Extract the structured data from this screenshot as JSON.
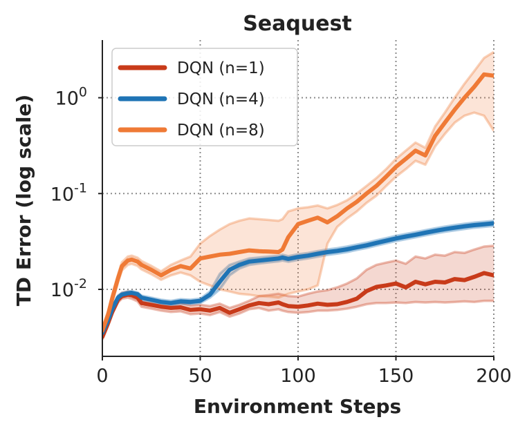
{
  "chart_data": {
    "type": "line",
    "title": "Seaquest",
    "xlabel": "Environment Steps",
    "ylabel": "TD Error (log scale)",
    "y_scale": "log",
    "xlim": [
      0,
      200
    ],
    "ylim": [
      0.002,
      4.0
    ],
    "grid": true,
    "legend_position": "top-left",
    "x_ticks": [
      {
        "value": 0,
        "label": "0"
      },
      {
        "value": 50,
        "label": "50"
      },
      {
        "value": 100,
        "label": "100"
      },
      {
        "value": 150,
        "label": "150"
      },
      {
        "value": 200,
        "label": "200"
      }
    ],
    "y_ticks": [
      {
        "value": 1,
        "base": "10",
        "exp": "0"
      },
      {
        "value": 0.1,
        "base": "10",
        "exp": "-1"
      },
      {
        "value": 0.01,
        "base": "10",
        "exp": "-2"
      }
    ],
    "x": [
      0,
      3,
      5,
      8,
      10,
      13,
      15,
      18,
      20,
      25,
      30,
      35,
      40,
      45,
      50,
      55,
      60,
      65,
      70,
      75,
      80,
      85,
      90,
      92,
      95,
      100,
      105,
      110,
      115,
      120,
      125,
      130,
      135,
      140,
      145,
      150,
      155,
      160,
      165,
      170,
      175,
      180,
      185,
      190,
      195,
      200
    ],
    "series": [
      {
        "name": "DQN (n=1)",
        "color": "#c83b1a",
        "values": [
          0.0032,
          0.0045,
          0.0058,
          0.0078,
          0.0085,
          0.0088,
          0.0087,
          0.0082,
          0.0072,
          0.0069,
          0.0066,
          0.0064,
          0.0065,
          0.0061,
          0.0062,
          0.006,
          0.0064,
          0.0057,
          0.0062,
          0.0068,
          0.0072,
          0.007,
          0.0073,
          0.007,
          0.0067,
          0.0066,
          0.0068,
          0.0071,
          0.0069,
          0.007,
          0.0074,
          0.008,
          0.0096,
          0.0106,
          0.011,
          0.0115,
          0.0105,
          0.012,
          0.0113,
          0.012,
          0.0118,
          0.0128,
          0.0125,
          0.0135,
          0.0148,
          0.014
        ],
        "lower": [
          0.003,
          0.0042,
          0.0055,
          0.0073,
          0.008,
          0.0082,
          0.008,
          0.0075,
          0.0066,
          0.0063,
          0.006,
          0.0058,
          0.0059,
          0.0055,
          0.0056,
          0.0054,
          0.0058,
          0.0052,
          0.0056,
          0.0062,
          0.0064,
          0.006,
          0.0062,
          0.006,
          0.0058,
          0.0057,
          0.0058,
          0.006,
          0.006,
          0.0061,
          0.0063,
          0.0066,
          0.007,
          0.0072,
          0.0072,
          0.0073,
          0.0072,
          0.0074,
          0.0073,
          0.0074,
          0.0073,
          0.0074,
          0.0075,
          0.0074,
          0.0076,
          0.0076
        ],
        "upper": [
          0.0035,
          0.0049,
          0.0062,
          0.0085,
          0.0092,
          0.0095,
          0.0094,
          0.009,
          0.008,
          0.0076,
          0.0073,
          0.0071,
          0.0072,
          0.0068,
          0.0069,
          0.0067,
          0.0071,
          0.0064,
          0.0069,
          0.0076,
          0.0085,
          0.0087,
          0.009,
          0.0088,
          0.0085,
          0.0084,
          0.009,
          0.0095,
          0.0098,
          0.0105,
          0.0115,
          0.013,
          0.016,
          0.018,
          0.019,
          0.02,
          0.0185,
          0.022,
          0.021,
          0.023,
          0.0225,
          0.0245,
          0.024,
          0.026,
          0.028,
          0.0285
        ]
      },
      {
        "name": "DQN (n=4)",
        "color": "#1f74b5",
        "values": [
          0.0035,
          0.0048,
          0.0062,
          0.0082,
          0.0088,
          0.0091,
          0.0092,
          0.0089,
          0.0082,
          0.0078,
          0.0074,
          0.0072,
          0.0075,
          0.0074,
          0.0076,
          0.0088,
          0.012,
          0.016,
          0.018,
          0.0195,
          0.02,
          0.0205,
          0.021,
          0.0215,
          0.0208,
          0.0218,
          0.0225,
          0.0235,
          0.0245,
          0.0252,
          0.0262,
          0.0275,
          0.0288,
          0.0305,
          0.0322,
          0.034,
          0.0356,
          0.0372,
          0.039,
          0.0408,
          0.0425,
          0.044,
          0.0455,
          0.0468,
          0.0478,
          0.049
        ],
        "lower": [
          0.0033,
          0.0045,
          0.0059,
          0.0078,
          0.0084,
          0.0087,
          0.0088,
          0.0085,
          0.0078,
          0.0074,
          0.007,
          0.0068,
          0.0071,
          0.007,
          0.0072,
          0.0082,
          0.01,
          0.014,
          0.0165,
          0.018,
          0.0186,
          0.0191,
          0.0196,
          0.02,
          0.0194,
          0.0203,
          0.021,
          0.0219,
          0.0229,
          0.0236,
          0.0245,
          0.0258,
          0.027,
          0.0286,
          0.0302,
          0.0319,
          0.0334,
          0.0349,
          0.0366,
          0.0383,
          0.0399,
          0.0413,
          0.0427,
          0.044,
          0.0449,
          0.046
        ],
        "upper": [
          0.0037,
          0.0051,
          0.0065,
          0.0086,
          0.0092,
          0.0095,
          0.0096,
          0.0093,
          0.0086,
          0.0082,
          0.0078,
          0.0076,
          0.0079,
          0.0078,
          0.008,
          0.0095,
          0.0145,
          0.018,
          0.0195,
          0.021,
          0.0215,
          0.022,
          0.0225,
          0.023,
          0.0222,
          0.0233,
          0.024,
          0.0251,
          0.0261,
          0.0269,
          0.028,
          0.0293,
          0.0307,
          0.0325,
          0.0343,
          0.0362,
          0.0379,
          0.0396,
          0.0415,
          0.0434,
          0.0452,
          0.0468,
          0.0484,
          0.0498,
          0.0508,
          0.052
        ]
      },
      {
        "name": "DQN (n=8)",
        "color": "#ef7a36",
        "values": [
          0.0037,
          0.0055,
          0.008,
          0.013,
          0.0175,
          0.02,
          0.0205,
          0.0195,
          0.018,
          0.016,
          0.014,
          0.016,
          0.0175,
          0.0165,
          0.021,
          0.022,
          0.023,
          0.0235,
          0.0245,
          0.0255,
          0.025,
          0.0248,
          0.0245,
          0.026,
          0.035,
          0.048,
          0.052,
          0.056,
          0.05,
          0.058,
          0.07,
          0.082,
          0.1,
          0.12,
          0.15,
          0.19,
          0.23,
          0.28,
          0.25,
          0.4,
          0.55,
          0.75,
          1.0,
          1.3,
          1.75,
          1.7
        ],
        "lower": [
          0.0034,
          0.005,
          0.0072,
          0.0118,
          0.0158,
          0.018,
          0.0185,
          0.0176,
          0.0162,
          0.0144,
          0.0126,
          0.014,
          0.015,
          0.014,
          0.012,
          0.011,
          0.01,
          0.0095,
          0.009,
          0.0088,
          0.0085,
          0.0084,
          0.0082,
          0.0085,
          0.009,
          0.0095,
          0.01,
          0.011,
          0.03,
          0.045,
          0.055,
          0.065,
          0.08,
          0.095,
          0.12,
          0.15,
          0.18,
          0.22,
          0.2,
          0.31,
          0.42,
          0.55,
          0.65,
          0.7,
          0.65,
          0.45
        ],
        "upper": [
          0.004,
          0.006,
          0.0088,
          0.0142,
          0.0192,
          0.022,
          0.0225,
          0.0214,
          0.0198,
          0.0176,
          0.0154,
          0.018,
          0.02,
          0.022,
          0.03,
          0.036,
          0.042,
          0.048,
          0.052,
          0.055,
          0.054,
          0.053,
          0.052,
          0.054,
          0.065,
          0.07,
          0.072,
          0.075,
          0.07,
          0.076,
          0.085,
          0.1,
          0.12,
          0.145,
          0.18,
          0.23,
          0.28,
          0.34,
          0.3,
          0.5,
          0.7,
          1.0,
          1.4,
          1.9,
          2.6,
          3.0
        ]
      }
    ]
  }
}
